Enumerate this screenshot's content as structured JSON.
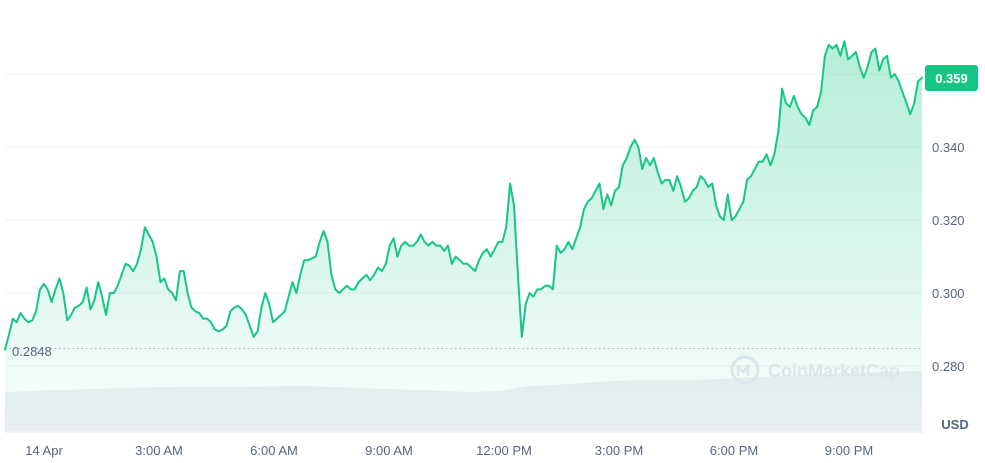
{
  "chart_data": {
    "type": "line",
    "ylim": [
      0.28,
      0.36
    ],
    "y_ticks": [
      "0.280",
      "0.300",
      "0.320",
      "0.340"
    ],
    "x_ticks": [
      "14 Apr",
      "3:00 AM",
      "6:00 AM",
      "9:00 AM",
      "12:00 PM",
      "3:00 PM",
      "6:00 PM",
      "9:00 PM"
    ],
    "y_unit": "USD",
    "current_price": 0.359,
    "current_price_label": "0.359",
    "open_price": 0.2848,
    "open_price_label": "0.2848",
    "watermark": "CoinMarketCap",
    "grid": true,
    "line_color": "#16c784",
    "series": [
      {
        "values": [
          0.2845,
          0.2885,
          0.293,
          0.292,
          0.2945,
          0.293,
          0.292,
          0.2925,
          0.295,
          0.301,
          0.3025,
          0.301,
          0.2975,
          0.301,
          0.304,
          0.3,
          0.2925,
          0.294,
          0.296,
          0.2965,
          0.2975,
          0.3015,
          0.2955,
          0.298,
          0.303,
          0.299,
          0.294,
          0.3,
          0.3,
          0.302,
          0.305,
          0.308,
          0.3075,
          0.306,
          0.308,
          0.312,
          0.318,
          0.316,
          0.314,
          0.31,
          0.303,
          0.304,
          0.301,
          0.3,
          0.298,
          0.306,
          0.306,
          0.3,
          0.296,
          0.295,
          0.2945,
          0.293,
          0.293,
          0.292,
          0.29,
          0.2895,
          0.29,
          0.291,
          0.295,
          0.296,
          0.2965,
          0.2955,
          0.294,
          0.291,
          0.288,
          0.2895,
          0.296,
          0.3,
          0.297,
          0.292,
          0.293,
          0.294,
          0.295,
          0.299,
          0.303,
          0.3,
          0.305,
          0.309,
          0.309,
          0.3095,
          0.31,
          0.314,
          0.317,
          0.314,
          0.305,
          0.301,
          0.3,
          0.301,
          0.302,
          0.301,
          0.301,
          0.303,
          0.304,
          0.305,
          0.3035,
          0.305,
          0.307,
          0.306,
          0.308,
          0.313,
          0.315,
          0.31,
          0.313,
          0.314,
          0.313,
          0.313,
          0.314,
          0.316,
          0.314,
          0.313,
          0.314,
          0.313,
          0.313,
          0.3115,
          0.313,
          0.308,
          0.31,
          0.309,
          0.308,
          0.308,
          0.307,
          0.306,
          0.309,
          0.311,
          0.312,
          0.31,
          0.312,
          0.314,
          0.314,
          0.318,
          0.33,
          0.324,
          0.305,
          0.288,
          0.297,
          0.3,
          0.299,
          0.301,
          0.301,
          0.302,
          0.302,
          0.301,
          0.313,
          0.311,
          0.312,
          0.314,
          0.312,
          0.315,
          0.318,
          0.323,
          0.325,
          0.326,
          0.328,
          0.33,
          0.323,
          0.327,
          0.324,
          0.328,
          0.329,
          0.335,
          0.337,
          0.34,
          0.342,
          0.34,
          0.334,
          0.337,
          0.335,
          0.337,
          0.333,
          0.33,
          0.331,
          0.331,
          0.328,
          0.332,
          0.329,
          0.325,
          0.326,
          0.328,
          0.329,
          0.332,
          0.331,
          0.329,
          0.33,
          0.324,
          0.321,
          0.32,
          0.327,
          0.32,
          0.321,
          0.323,
          0.325,
          0.331,
          0.332,
          0.334,
          0.336,
          0.336,
          0.338,
          0.335,
          0.338,
          0.344,
          0.356,
          0.352,
          0.351,
          0.354,
          0.351,
          0.349,
          0.348,
          0.346,
          0.35,
          0.351,
          0.355,
          0.365,
          0.368,
          0.367,
          0.368,
          0.365,
          0.369,
          0.364,
          0.365,
          0.366,
          0.362,
          0.359,
          0.362,
          0.366,
          0.367,
          0.361,
          0.364,
          0.365,
          0.359,
          0.36,
          0.358,
          0.355,
          0.352,
          0.349,
          0.352,
          0.358,
          0.359
        ]
      }
    ]
  }
}
